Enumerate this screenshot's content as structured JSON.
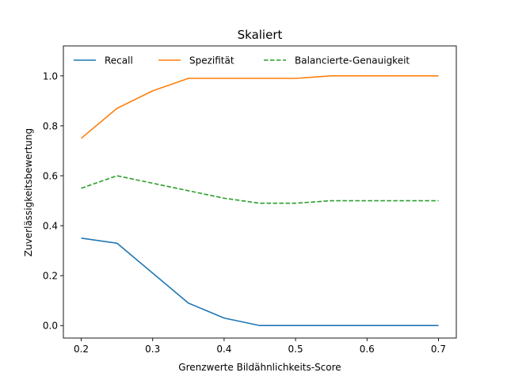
{
  "chart_data": {
    "type": "line",
    "title": "Skaliert",
    "xlabel": "Grenzwerte Bildähnlichkeits-Score",
    "ylabel": "Zuverlässigkeitsbewertung",
    "x": [
      0.2,
      0.25,
      0.3,
      0.35,
      0.4,
      0.45,
      0.5,
      0.55,
      0.6,
      0.65,
      0.7
    ],
    "xlim": [
      0.175,
      0.725
    ],
    "ylim": [
      -0.05,
      1.12
    ],
    "xticks": [
      0.2,
      0.3,
      0.4,
      0.5,
      0.6,
      0.7
    ],
    "xtick_labels": [
      "0.2",
      "0.3",
      "0.4",
      "0.5",
      "0.6",
      "0.7"
    ],
    "yticks": [
      0.0,
      0.2,
      0.4,
      0.6,
      0.8,
      1.0
    ],
    "ytick_labels": [
      "0.0",
      "0.2",
      "0.4",
      "0.6",
      "0.8",
      "1.0"
    ],
    "grid": false,
    "legend_position": "top",
    "series": [
      {
        "name": "Recall",
        "color": "#1f77b4",
        "dash": "solid",
        "values": [
          0.35,
          0.33,
          0.21,
          0.09,
          0.03,
          0.0,
          0.0,
          0.0,
          0.0,
          0.0,
          0.0
        ]
      },
      {
        "name": "Spezifität",
        "color": "#ff7f0e",
        "dash": "solid",
        "values": [
          0.75,
          0.87,
          0.94,
          0.99,
          0.99,
          0.99,
          0.99,
          1.0,
          1.0,
          1.0,
          1.0
        ]
      },
      {
        "name": "Balancierte-Genauigkeit",
        "color": "#2ca02c",
        "dash": "dashed",
        "values": [
          0.55,
          0.6,
          0.57,
          0.54,
          0.51,
          0.49,
          0.49,
          0.5,
          0.5,
          0.5,
          0.5
        ]
      }
    ]
  }
}
